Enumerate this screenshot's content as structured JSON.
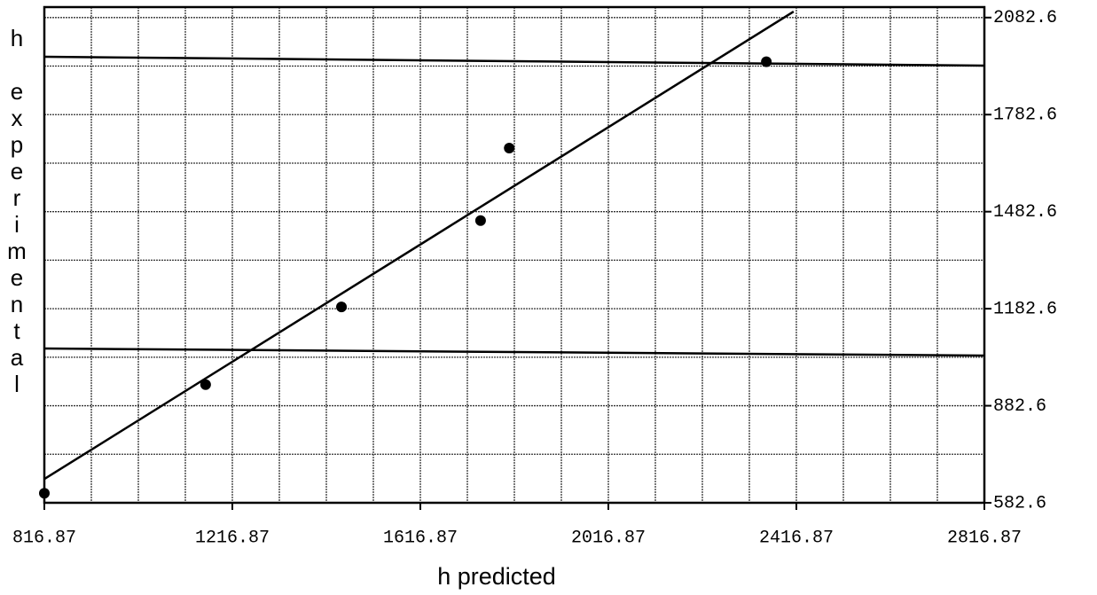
{
  "chart_data": {
    "type": "scatter",
    "x_label": "h predicted",
    "y_label": "h experimental",
    "xlim": [
      816.87,
      2816.87
    ],
    "xticks": [
      816.87,
      1216.87,
      1616.87,
      2016.87,
      2416.87,
      2816.87
    ],
    "ylim": [
      582.6,
      2115
    ],
    "yticks": [
      582.6,
      882.6,
      1182.6,
      1482.6,
      1782.6,
      2082.6
    ],
    "grid": true,
    "series": [
      {
        "type": "scatter",
        "color": "#000000",
        "x": [
          816.87,
          1160,
          1449,
          1745,
          1806,
          2353
        ],
        "values": [
          612,
          948,
          1188,
          1455,
          1679,
          1946
        ]
      },
      {
        "type": "line",
        "color": "#000000",
        "x": [
          816.87,
          2411
        ],
        "values": [
          656,
          2101
        ]
      }
    ]
  }
}
